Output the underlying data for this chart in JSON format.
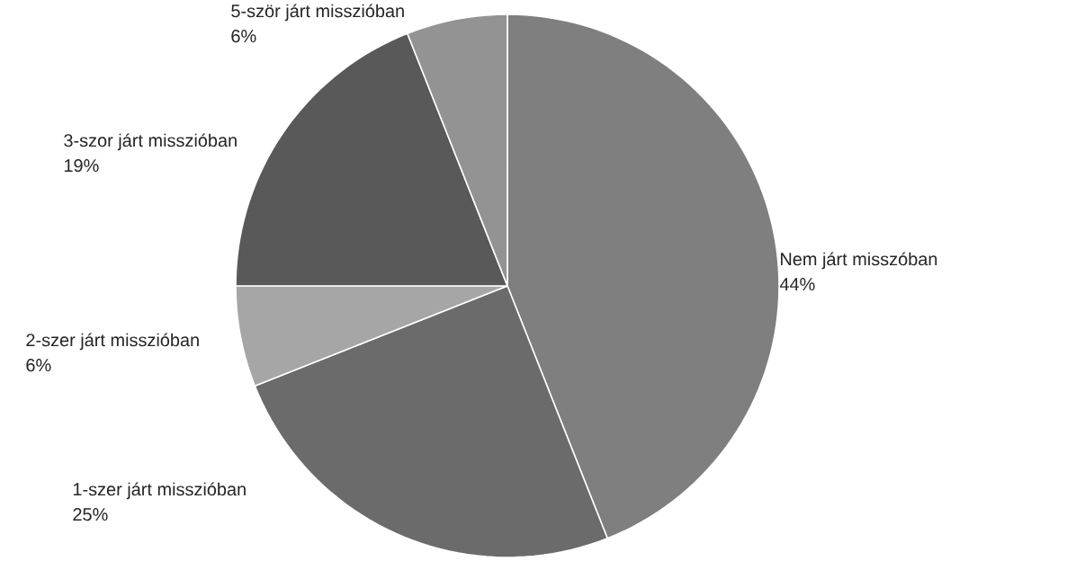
{
  "chart_data": {
    "type": "pie",
    "categories": [
      "Nem járt misszóban",
      "1-szer járt misszióban",
      "2-szer járt misszióban",
      "3-szor járt misszióban",
      "5-ször járt misszióban"
    ],
    "values": [
      44,
      25,
      6,
      19,
      6
    ],
    "value_labels": [
      "44%",
      "25%",
      "6%",
      "19%",
      "6%"
    ],
    "colors": [
      "#7f7f7f",
      "#6b6b6b",
      "#a6a6a6",
      "#595959",
      "#939393"
    ]
  }
}
